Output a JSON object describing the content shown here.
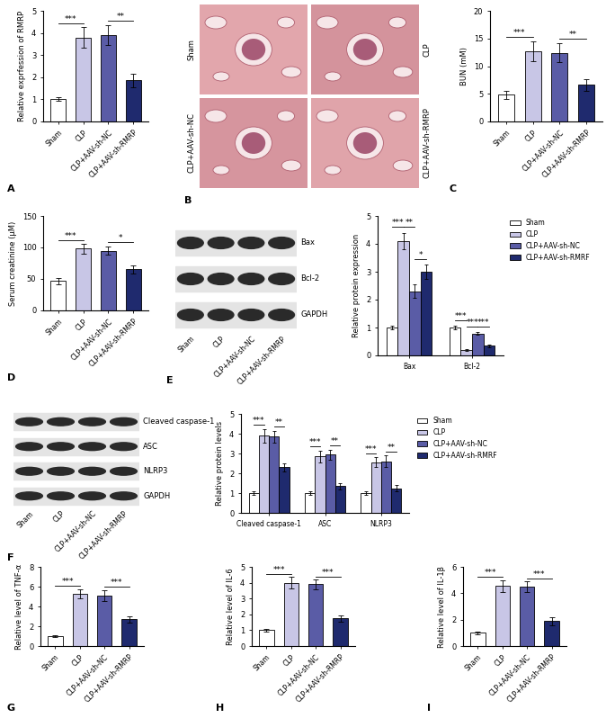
{
  "chart_data": [
    {
      "panel": "A",
      "type": "bar",
      "categories": [
        "Sham",
        "CLP",
        "CLP+AAV-sh-NC",
        "CLP+AAV-sh-RMRP"
      ],
      "values": [
        1.0,
        3.8,
        3.9,
        1.85
      ],
      "errors": [
        0.08,
        0.45,
        0.45,
        0.3
      ],
      "colors": [
        "#ffffff",
        "#c8c6e6",
        "#5a5ca6",
        "#1f2a6e"
      ],
      "y_label": "Relative exprfession of RMRP",
      "ylim": [
        0,
        5
      ],
      "yticks": [
        0,
        1,
        2,
        3,
        4,
        5
      ],
      "annotations": [
        {
          "pair": [
            0,
            1
          ],
          "text": "***"
        },
        {
          "pair": [
            2,
            3
          ],
          "text": "**"
        }
      ]
    },
    {
      "panel": "C",
      "type": "bar",
      "categories": [
        "Sham",
        "CLP",
        "CLP+AAV-sh-NC",
        "CLP+AAV-sh-RMRP"
      ],
      "values": [
        4.8,
        12.7,
        12.4,
        6.6
      ],
      "errors": [
        0.8,
        1.8,
        1.7,
        1.0
      ],
      "colors": [
        "#ffffff",
        "#c8c6e6",
        "#5a5ca6",
        "#1f2a6e"
      ],
      "y_label": "BUN (mM)",
      "ylim": [
        0,
        20
      ],
      "yticks": [
        0,
        5,
        10,
        15,
        20
      ],
      "annotations": [
        {
          "pair": [
            0,
            1
          ],
          "text": "***"
        },
        {
          "pair": [
            2,
            3
          ],
          "text": "**"
        }
      ]
    },
    {
      "panel": "D",
      "type": "bar",
      "categories": [
        "Sham",
        "CLP",
        "CLP+AAV-sh-NC",
        "CLP+AAV-sh-RMRP"
      ],
      "values": [
        47,
        98,
        95,
        65
      ],
      "errors": [
        5,
        8,
        7,
        6
      ],
      "colors": [
        "#ffffff",
        "#c8c6e6",
        "#5a5ca6",
        "#1f2a6e"
      ],
      "y_label": "Serum creatinine (μM)",
      "ylim": [
        0,
        150
      ],
      "yticks": [
        0,
        50,
        100,
        150
      ],
      "annotations": [
        {
          "pair": [
            0,
            1
          ],
          "text": "***"
        },
        {
          "pair": [
            2,
            3
          ],
          "text": "*"
        }
      ]
    },
    {
      "panel": "E",
      "type": "grouped_bar",
      "categories": [
        "Bax",
        "Bcl-2"
      ],
      "series": [
        {
          "name": "Sham",
          "color": "#ffffff",
          "values": [
            1.0,
            1.0
          ],
          "errors": [
            0.08,
            0.05
          ]
        },
        {
          "name": "CLP",
          "color": "#c8c6e6",
          "values": [
            4.1,
            0.18
          ],
          "errors": [
            0.3,
            0.03
          ]
        },
        {
          "name": "CLP+AAV-sh-NC",
          "color": "#5a5ca6",
          "values": [
            2.3,
            0.78
          ],
          "errors": [
            0.25,
            0.05
          ]
        },
        {
          "name": "CLP+AAV-sh-RMRF",
          "color": "#1f2a6e",
          "values": [
            3.0,
            0.35
          ],
          "errors": [
            0.25,
            0.05
          ]
        }
      ],
      "y_label": "Relative protein expression",
      "ylim": [
        0,
        5
      ],
      "yticks": [
        0,
        1,
        2,
        3,
        4,
        5
      ],
      "legend": "upper left",
      "annotations": [
        {
          "category": 0,
          "pair": [
            0,
            1
          ],
          "text": "***"
        },
        {
          "category": 0,
          "pair": [
            1,
            2
          ],
          "text": "**"
        },
        {
          "category": 0,
          "pair": [
            2,
            3
          ],
          "text": "*"
        },
        {
          "category": 1,
          "pair": [
            0,
            1
          ],
          "text": "***"
        },
        {
          "category": 1,
          "pair": [
            1,
            2
          ],
          "text": "***"
        },
        {
          "category": 1,
          "pair": [
            2,
            3
          ],
          "text": "***"
        }
      ]
    },
    {
      "panel": "F",
      "type": "grouped_bar",
      "categories": [
        "Cleaved caspase-1",
        "ASC",
        "NLRP3"
      ],
      "series": [
        {
          "name": "Sham",
          "color": "#ffffff",
          "values": [
            1.0,
            1.0,
            1.0
          ],
          "errors": [
            0.08,
            0.08,
            0.08
          ]
        },
        {
          "name": "CLP",
          "color": "#c8c6e6",
          "values": [
            3.9,
            2.85,
            2.55
          ],
          "errors": [
            0.35,
            0.3,
            0.25
          ]
        },
        {
          "name": "CLP+AAV-sh-NC",
          "color": "#5a5ca6",
          "values": [
            3.85,
            2.95,
            2.6
          ],
          "errors": [
            0.3,
            0.25,
            0.3
          ]
        },
        {
          "name": "CLP+AAV-sh-RMRF",
          "color": "#1f2a6e",
          "values": [
            2.3,
            1.35,
            1.25
          ],
          "errors": [
            0.2,
            0.15,
            0.15
          ]
        }
      ],
      "y_label": "Relative protein levels",
      "ylim": [
        0,
        5
      ],
      "yticks": [
        0,
        1,
        2,
        3,
        4,
        5
      ],
      "legend": "upper left",
      "annotations": [
        {
          "category": 0,
          "pair": [
            0,
            1
          ],
          "text": "***"
        },
        {
          "category": 0,
          "pair": [
            2,
            3
          ],
          "text": "**"
        },
        {
          "category": 1,
          "pair": [
            0,
            1
          ],
          "text": "***"
        },
        {
          "category": 1,
          "pair": [
            2,
            3
          ],
          "text": "**"
        },
        {
          "category": 2,
          "pair": [
            0,
            1
          ],
          "text": "***"
        },
        {
          "category": 2,
          "pair": [
            2,
            3
          ],
          "text": "**"
        }
      ]
    },
    {
      "panel": "G",
      "type": "bar",
      "categories": [
        "Sham",
        "CLP",
        "CLP+AAV-sh-NC",
        "CLP+AAV-sh-RMRP"
      ],
      "values": [
        1.0,
        5.3,
        5.1,
        2.7
      ],
      "errors": [
        0.1,
        0.45,
        0.55,
        0.3
      ],
      "colors": [
        "#ffffff",
        "#c8c6e6",
        "#5a5ca6",
        "#1f2a6e"
      ],
      "y_label": "Relative level of TNF-α",
      "ylim": [
        0,
        8
      ],
      "yticks": [
        0,
        2,
        4,
        6,
        8
      ],
      "annotations": [
        {
          "pair": [
            0,
            1
          ],
          "text": "***"
        },
        {
          "pair": [
            2,
            3
          ],
          "text": "***"
        }
      ]
    },
    {
      "panel": "H",
      "type": "bar",
      "categories": [
        "Sham",
        "CLP",
        "CLP+AAV-sh-NC",
        "CLP+AAV-sh-RMRP"
      ],
      "values": [
        1.0,
        4.0,
        3.9,
        1.75
      ],
      "errors": [
        0.1,
        0.35,
        0.3,
        0.2
      ],
      "colors": [
        "#ffffff",
        "#c8c6e6",
        "#5a5ca6",
        "#1f2a6e"
      ],
      "y_label": "Relative level of IL-6",
      "ylim": [
        0,
        5
      ],
      "yticks": [
        0,
        1,
        2,
        3,
        4,
        5
      ],
      "annotations": [
        {
          "pair": [
            0,
            1
          ],
          "text": "***"
        },
        {
          "pair": [
            2,
            3
          ],
          "text": "***"
        }
      ]
    },
    {
      "panel": "I",
      "type": "bar",
      "categories": [
        "Sham",
        "CLP",
        "CLP+AAV-sh-NC",
        "CLP+AAV-sh-RMRP"
      ],
      "values": [
        1.0,
        4.55,
        4.5,
        1.9
      ],
      "errors": [
        0.1,
        0.45,
        0.4,
        0.3
      ],
      "colors": [
        "#ffffff",
        "#c8c6e6",
        "#5a5ca6",
        "#1f2a6e"
      ],
      "y_label": "Relative level of IL-1β",
      "ylim": [
        0,
        6
      ],
      "yticks": [
        0,
        2,
        4,
        6
      ],
      "annotations": [
        {
          "pair": [
            0,
            1
          ],
          "text": "***"
        },
        {
          "pair": [
            2,
            3
          ],
          "text": "***"
        }
      ]
    }
  ],
  "images": {
    "panel": "B",
    "labels": [
      "Sham",
      "CLP",
      "CLP+AAV-sh-NC",
      "CLP+AAV-sh-RMRP"
    ]
  },
  "blots": [
    {
      "panel": "E",
      "rows": [
        "Bax",
        "Bcl-2",
        "GAPDH"
      ],
      "lanes": [
        "Sham",
        "CLP",
        "CLP+AAV-sh-NC",
        "CLP+AAV-sh-RMRP"
      ]
    },
    {
      "panel": "F",
      "rows": [
        "Cleaved caspase-1",
        "ASC",
        "NLRP3",
        "GAPDH"
      ],
      "lanes": [
        "Sham",
        "CLP",
        "CLP+AAV-sh-NC",
        "CLP+AAV-sh-RMRP"
      ]
    }
  ]
}
